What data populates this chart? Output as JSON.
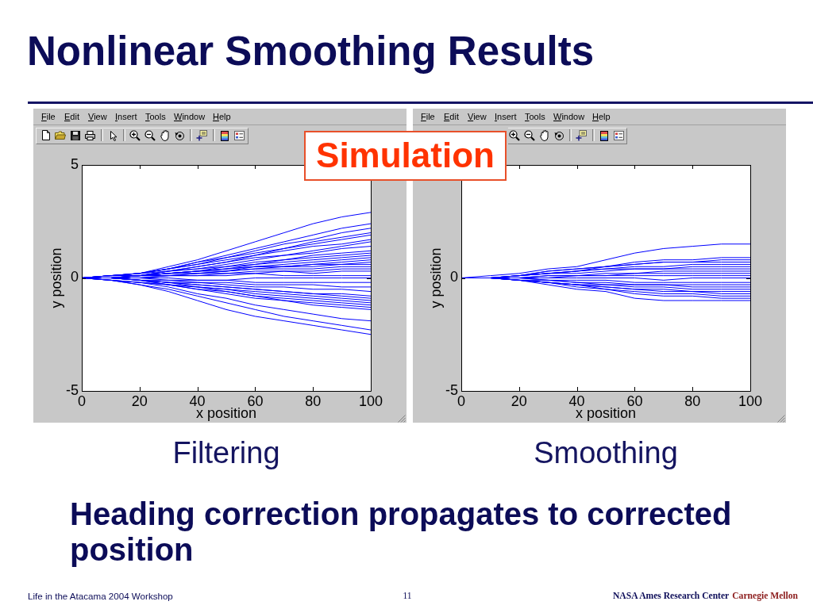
{
  "chart_data": [
    {
      "type": "line",
      "title": "Filtering",
      "xlabel": "x position",
      "ylabel": "y position",
      "xlim": [
        0,
        100
      ],
      "ylim": [
        -5,
        5
      ],
      "xticks": [
        0,
        20,
        40,
        60,
        80,
        100
      ],
      "yticks": [
        -5,
        0,
        5
      ],
      "marker": "none",
      "x": [
        0,
        10,
        20,
        30,
        40,
        50,
        60,
        70,
        80,
        90,
        100
      ],
      "series": [
        {
          "color": "#0000ff",
          "values": [
            0,
            0.1,
            0.2,
            0.5,
            0.8,
            1.2,
            1.6,
            2.0,
            2.4,
            2.7,
            2.9
          ]
        },
        {
          "color": "#0000ff",
          "values": [
            0,
            0.1,
            0.2,
            0.4,
            0.7,
            1.0,
            1.3,
            1.6,
            1.9,
            2.2,
            2.4
          ]
        },
        {
          "color": "#0000ff",
          "values": [
            0,
            0.1,
            0.2,
            0.4,
            0.6,
            0.9,
            1.2,
            1.5,
            1.7,
            2.0,
            2.2
          ]
        },
        {
          "color": "#0000ff",
          "values": [
            0,
            0.1,
            0.2,
            0.4,
            0.7,
            0.9,
            1.1,
            1.3,
            1.6,
            1.8,
            2.0
          ]
        },
        {
          "color": "#0000ff",
          "values": [
            0,
            0.1,
            0.1,
            0.3,
            0.5,
            0.7,
            1.0,
            1.3,
            1.5,
            1.7,
            1.9
          ]
        },
        {
          "color": "#0000ff",
          "values": [
            0,
            0.1,
            0.2,
            0.4,
            0.6,
            0.8,
            1.0,
            1.2,
            1.4,
            1.5,
            1.7
          ]
        },
        {
          "color": "#0000ff",
          "values": [
            0,
            0,
            0.1,
            0.3,
            0.4,
            0.6,
            0.8,
            1.0,
            1.2,
            1.4,
            1.6
          ]
        },
        {
          "color": "#0000ff",
          "values": [
            0,
            0.1,
            0.2,
            0.3,
            0.5,
            0.7,
            0.9,
            1.0,
            1.1,
            1.3,
            1.4
          ]
        },
        {
          "color": "#0000ff",
          "values": [
            0,
            0,
            0.1,
            0.2,
            0.3,
            0.5,
            0.7,
            0.8,
            1.0,
            1.1,
            1.2
          ]
        },
        {
          "color": "#0000ff",
          "values": [
            0,
            0.1,
            0.1,
            0.3,
            0.4,
            0.5,
            0.6,
            0.8,
            0.9,
            1.0,
            1.1
          ]
        },
        {
          "color": "#0000ff",
          "values": [
            0,
            0,
            0.1,
            0.2,
            0.3,
            0.4,
            0.6,
            0.7,
            0.8,
            0.9,
            1.0
          ]
        },
        {
          "color": "#0000ff",
          "values": [
            0,
            0,
            0.1,
            0.2,
            0.2,
            0.3,
            0.5,
            0.6,
            0.7,
            0.8,
            0.9
          ]
        },
        {
          "color": "#0000ff",
          "values": [
            0,
            0,
            0.1,
            0.2,
            0.3,
            0.4,
            0.5,
            0.5,
            0.6,
            0.7,
            0.8
          ]
        },
        {
          "color": "#0000ff",
          "values": [
            0,
            0,
            0.1,
            0.1,
            0.2,
            0.3,
            0.4,
            0.5,
            0.6,
            0.6,
            0.7
          ]
        },
        {
          "color": "#0000ff",
          "values": [
            0,
            0,
            0.1,
            0.2,
            0.3,
            0.4,
            0.5,
            0.5,
            0.5,
            0.6,
            0.6
          ]
        },
        {
          "color": "#0000ff",
          "values": [
            0,
            0,
            0.1,
            0.2,
            0.3,
            0.3,
            0.4,
            0.4,
            0.4,
            0.5,
            0.5
          ]
        },
        {
          "color": "#0000ff",
          "values": [
            0,
            0,
            0,
            0.1,
            0.1,
            0.2,
            0.2,
            0.3,
            0.3,
            0.4,
            0.4
          ]
        },
        {
          "color": "#0000ff",
          "values": [
            0,
            0,
            0.1,
            0.1,
            0.2,
            0.2,
            0.3,
            0.3,
            0.2,
            0.3,
            0.3
          ]
        },
        {
          "color": "#0000ff",
          "values": [
            0,
            0,
            0,
            0.1,
            0.1,
            0.1,
            0.2,
            0.1,
            0.1,
            0.1,
            0.1
          ]
        },
        {
          "color": "#0000ff",
          "values": [
            0,
            0,
            0,
            0,
            -0.1,
            -0.1,
            0,
            0,
            0,
            0,
            0
          ]
        },
        {
          "color": "#0000ff",
          "values": [
            0,
            0,
            0,
            -0.1,
            -0.1,
            -0.1,
            -0.2,
            -0.2,
            -0.2,
            -0.2,
            -0.2
          ]
        },
        {
          "color": "#0000ff",
          "values": [
            0,
            0,
            -0.1,
            -0.1,
            -0.2,
            -0.2,
            -0.3,
            -0.3,
            -0.3,
            -0.4,
            -0.4
          ]
        },
        {
          "color": "#0000ff",
          "values": [
            0,
            0,
            -0.1,
            -0.2,
            -0.2,
            -0.3,
            -0.4,
            -0.4,
            -0.5,
            -0.5,
            -0.6
          ]
        },
        {
          "color": "#0000ff",
          "values": [
            0,
            0,
            -0.1,
            -0.2,
            -0.3,
            -0.4,
            -0.5,
            -0.6,
            -0.7,
            -0.7,
            -0.8
          ]
        },
        {
          "color": "#0000ff",
          "values": [
            0,
            0,
            -0.1,
            -0.2,
            -0.3,
            -0.4,
            -0.5,
            -0.6,
            -0.7,
            -0.8,
            -0.9
          ]
        },
        {
          "color": "#0000ff",
          "values": [
            0,
            0,
            -0.1,
            -0.3,
            -0.4,
            -0.5,
            -0.6,
            -0.7,
            -0.8,
            -0.9,
            -1.0
          ]
        },
        {
          "color": "#0000ff",
          "values": [
            0,
            0,
            -0.1,
            -0.2,
            -0.4,
            -0.5,
            -0.7,
            -0.8,
            -0.9,
            -1.0,
            -1.1
          ]
        },
        {
          "color": "#0000ff",
          "values": [
            0,
            -0.1,
            -0.2,
            -0.3,
            -0.5,
            -0.6,
            -0.8,
            -0.9,
            -1.0,
            -1.1,
            -1.2
          ]
        },
        {
          "color": "#0000ff",
          "values": [
            0,
            -0.1,
            -0.2,
            -0.3,
            -0.4,
            -0.6,
            -0.8,
            -1.0,
            -1.1,
            -1.2,
            -1.3
          ]
        },
        {
          "color": "#0000ff",
          "values": [
            0,
            0,
            -0.1,
            -0.3,
            -0.5,
            -0.7,
            -0.9,
            -1.0,
            -1.2,
            -1.3,
            -1.4
          ]
        },
        {
          "color": "#0000ff",
          "values": [
            0,
            -0.1,
            -0.2,
            -0.4,
            -0.7,
            -0.9,
            -1.2,
            -1.4,
            -1.6,
            -1.8,
            -1.9
          ]
        },
        {
          "color": "#0000ff",
          "values": [
            0,
            -0.1,
            -0.3,
            -0.5,
            -0.8,
            -1.1,
            -1.4,
            -1.7,
            -1.9,
            -2.1,
            -2.3
          ]
        },
        {
          "color": "#0000ff",
          "values": [
            0,
            -0.1,
            -0.3,
            -0.6,
            -1.0,
            -1.4,
            -1.7,
            -1.9,
            -2.1,
            -2.3,
            -2.5
          ]
        }
      ],
      "annotations": [
        "File",
        "Edit",
        "View",
        "Insert",
        "Tools",
        "Window",
        "Help",
        "Nonlinear Smoothing Results",
        "Simulation",
        "Heading correction propagates to corrected position",
        "Life in the Atacama 2004 Workshop",
        "11",
        "NASA Ames Research Center",
        "Carnegie Mellon"
      ]
    },
    {
      "type": "line",
      "title": "Smoothing",
      "xlabel": "x position",
      "ylabel": "y position",
      "xlim": [
        0,
        100
      ],
      "ylim": [
        -5,
        5
      ],
      "xticks": [
        0,
        20,
        40,
        60,
        80,
        100
      ],
      "yticks": [
        -5,
        0,
        {
          "value": 5,
          "label": null
        }
      ],
      "marker": "none",
      "x": [
        0,
        10,
        20,
        30,
        40,
        50,
        60,
        70,
        80,
        90,
        100
      ],
      "series": [
        {
          "color": "#0000ff",
          "values": [
            0,
            0.1,
            0.2,
            0.4,
            0.5,
            0.8,
            1.1,
            1.3,
            1.4,
            1.5,
            1.5
          ]
        },
        {
          "color": "#0000ff",
          "values": [
            0,
            0,
            0.1,
            0.3,
            0.4,
            0.5,
            0.7,
            0.8,
            0.8,
            0.9,
            0.9
          ]
        },
        {
          "color": "#0000ff",
          "values": [
            0,
            0,
            0.1,
            0.2,
            0.3,
            0.5,
            0.6,
            0.7,
            0.7,
            0.8,
            0.8
          ]
        },
        {
          "color": "#0000ff",
          "values": [
            0,
            0,
            0.1,
            0.3,
            0.4,
            0.5,
            0.6,
            0.7,
            0.7,
            0.7,
            0.7
          ]
        },
        {
          "color": "#0000ff",
          "values": [
            0,
            0,
            0.1,
            0.2,
            0.3,
            0.4,
            0.5,
            0.5,
            0.6,
            0.6,
            0.6
          ]
        },
        {
          "color": "#0000ff",
          "values": [
            0,
            0,
            0.1,
            0.2,
            0.2,
            0.3,
            0.4,
            0.4,
            0.5,
            0.5,
            0.5
          ]
        },
        {
          "color": "#0000ff",
          "values": [
            0,
            0,
            0.1,
            0.2,
            0.3,
            0.4,
            0.4,
            0.4,
            0.4,
            0.4,
            0.4
          ]
        },
        {
          "color": "#0000ff",
          "values": [
            0,
            0,
            0,
            0.1,
            0.1,
            0.2,
            0.2,
            0.3,
            0.3,
            0.3,
            0.3
          ]
        },
        {
          "color": "#0000ff",
          "values": [
            0,
            0,
            0,
            0.1,
            0.1,
            0.1,
            0.2,
            0.2,
            0.2,
            0.2,
            0.2
          ]
        },
        {
          "color": "#0000ff",
          "values": [
            0,
            0,
            0,
            0,
            0.1,
            0.1,
            0.1,
            0.1,
            0.1,
            0.1,
            0.1
          ]
        },
        {
          "color": "#0000ff",
          "values": [
            0,
            0,
            0,
            0,
            0,
            0,
            0,
            -0.1,
            0,
            0,
            0
          ]
        },
        {
          "color": "#0000ff",
          "values": [
            0,
            0,
            0,
            -0.1,
            -0.1,
            -0.1,
            -0.2,
            -0.2,
            -0.2,
            -0.2,
            -0.2
          ]
        },
        {
          "color": "#0000ff",
          "values": [
            0,
            0,
            -0.1,
            -0.2,
            -0.3,
            -0.3,
            -0.3,
            -0.3,
            -0.3,
            -0.3,
            -0.3
          ]
        },
        {
          "color": "#0000ff",
          "values": [
            0,
            0,
            0,
            -0.1,
            -0.2,
            -0.2,
            -0.3,
            -0.3,
            -0.4,
            -0.4,
            -0.4
          ]
        },
        {
          "color": "#0000ff",
          "values": [
            0,
            0,
            -0.1,
            -0.1,
            -0.2,
            -0.3,
            -0.4,
            -0.4,
            -0.5,
            -0.5,
            -0.5
          ]
        },
        {
          "color": "#0000ff",
          "values": [
            0,
            0,
            -0.1,
            -0.2,
            -0.3,
            -0.4,
            -0.5,
            -0.5,
            -0.6,
            -0.6,
            -0.6
          ]
        },
        {
          "color": "#0000ff",
          "values": [
            0,
            0,
            -0.1,
            -0.2,
            -0.3,
            -0.4,
            -0.5,
            -0.6,
            -0.6,
            -0.7,
            -0.7
          ]
        },
        {
          "color": "#0000ff",
          "values": [
            0,
            0,
            -0.1,
            -0.2,
            -0.3,
            -0.5,
            -0.6,
            -0.7,
            -0.7,
            -0.8,
            -0.8
          ]
        },
        {
          "color": "#0000ff",
          "values": [
            0,
            0,
            -0.1,
            -0.2,
            -0.4,
            -0.5,
            -0.7,
            -0.8,
            -0.8,
            -0.9,
            -0.9
          ]
        },
        {
          "color": "#0000ff",
          "values": [
            0,
            0,
            -0.1,
            -0.3,
            -0.5,
            -0.6,
            -0.9,
            -1.0,
            -1.0,
            -1.0,
            -1.0
          ]
        }
      ],
      "annotations": [
        "File",
        "Edit",
        "View",
        "Insert",
        "Tools",
        "Window",
        "Help"
      ]
    }
  ]
}
